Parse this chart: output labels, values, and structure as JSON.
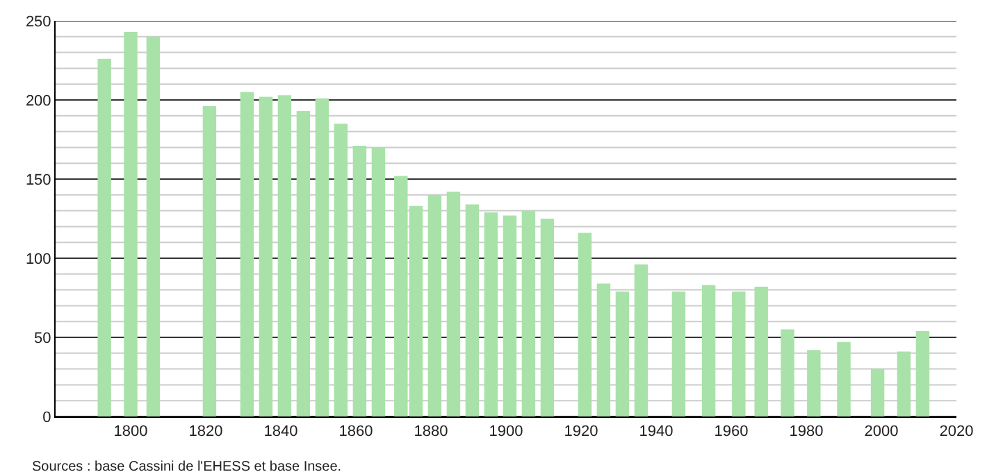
{
  "chart_data": {
    "type": "bar",
    "x": [
      1793,
      1800,
      1806,
      1821,
      1831,
      1836,
      1841,
      1846,
      1851,
      1856,
      1861,
      1866,
      1872,
      1876,
      1881,
      1886,
      1891,
      1896,
      1901,
      1906,
      1911,
      1921,
      1926,
      1931,
      1936,
      1946,
      1954,
      1962,
      1968,
      1975,
      1982,
      1990,
      1999,
      2006,
      2011
    ],
    "values": [
      226,
      243,
      240,
      196,
      205,
      202,
      203,
      193,
      201,
      185,
      171,
      170,
      152,
      133,
      140,
      142,
      134,
      129,
      127,
      130,
      125,
      116,
      84,
      79,
      96,
      79,
      83,
      79,
      82,
      55,
      42,
      47,
      30,
      41,
      54
    ],
    "color": "#a8e2a8",
    "xlim": [
      1780,
      2020
    ],
    "xticks": [
      1800,
      1820,
      1840,
      1860,
      1880,
      1900,
      1920,
      1940,
      1960,
      1980,
      2000,
      2020
    ],
    "ylim": [
      0,
      250
    ],
    "yticks": [
      0,
      {
        "value": 10,
        "label": null
      },
      {
        "value": 20,
        "label": null
      },
      {
        "value": 30,
        "label": null
      },
      {
        "value": 40,
        "label": null
      },
      50,
      {
        "value": 60,
        "label": null
      },
      {
        "value": 70,
        "label": null
      },
      {
        "value": 80,
        "label": null
      },
      {
        "value": 90,
        "label": null
      },
      100,
      {
        "value": 110,
        "label": null
      },
      {
        "value": 120,
        "label": null
      },
      {
        "value": 130,
        "label": null
      },
      {
        "value": 140,
        "label": null
      },
      150,
      {
        "value": 160,
        "label": null
      },
      {
        "value": 170,
        "label": null
      },
      {
        "value": 180,
        "label": null
      },
      {
        "value": 190,
        "label": null
      },
      200,
      {
        "value": 210,
        "label": null
      },
      {
        "value": 220,
        "label": null
      },
      {
        "value": 230,
        "label": null
      },
      {
        "value": 240,
        "label": null
      },
      250
    ],
    "grid": "y",
    "annotations": [
      "Sources : base Cassini de l'EHESS et base Insee."
    ]
  }
}
